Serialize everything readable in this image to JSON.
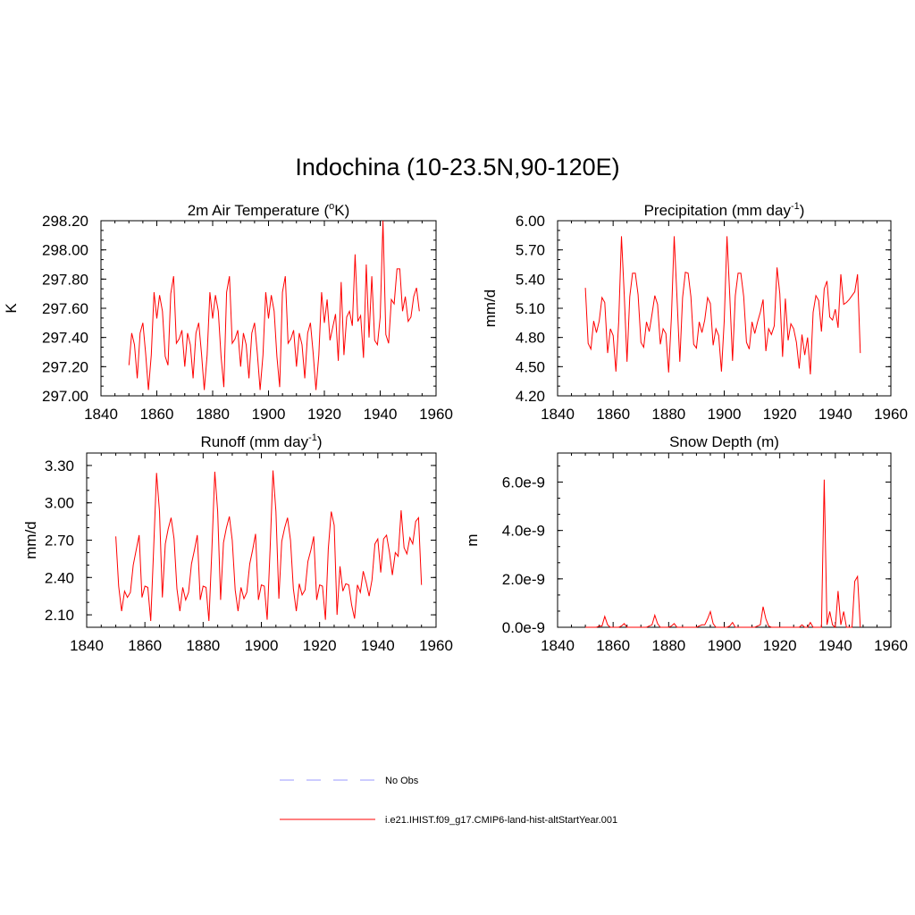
{
  "figure": {
    "title": "Indochina (10-23.5N,90-120E)"
  },
  "legend": [
    {
      "label": "No Obs",
      "color": "#9999ff",
      "dash": "dashed"
    },
    {
      "label": "i.e21.IHIST.f09_g17.CMIP6-land-hist-altStartYear.001",
      "color": "#ff0000",
      "dash": "solid"
    }
  ],
  "chart_data": [
    {
      "type": "line",
      "title_main": "2m Air Temperature (",
      "title_sup": "o",
      "title_end": "K)",
      "ylabel": "K",
      "xlim": [
        1840,
        1960
      ],
      "ylim": [
        297.0,
        298.2
      ],
      "xticks": [
        1840,
        1860,
        1880,
        1900,
        1920,
        1940,
        1960
      ],
      "yticks": [
        "297.00",
        "297.20",
        "297.40",
        "297.60",
        "297.80",
        "298.00",
        "298.20"
      ],
      "x_start": 1850,
      "series": [
        {
          "color": "#ff0000",
          "values": [
            297.21,
            297.43,
            297.35,
            297.12,
            297.43,
            297.5,
            297.29,
            297.04,
            297.28,
            297.71,
            297.53,
            297.69,
            297.58,
            297.27,
            297.21,
            297.7,
            297.82,
            297.36,
            297.39,
            297.45,
            297.2,
            297.43,
            297.35,
            297.12,
            297.43,
            297.5,
            297.29,
            297.04,
            297.28,
            297.71,
            297.53,
            297.69,
            297.58,
            297.27,
            297.06,
            297.71,
            297.82,
            297.36,
            297.39,
            297.45,
            297.2,
            297.43,
            297.35,
            297.12,
            297.43,
            297.5,
            297.29,
            297.04,
            297.28,
            297.71,
            297.53,
            297.69,
            297.58,
            297.27,
            297.06,
            297.71,
            297.82,
            297.36,
            297.39,
            297.45,
            297.2,
            297.43,
            297.35,
            297.12,
            297.43,
            297.5,
            297.29,
            297.04,
            297.28,
            297.71,
            297.5,
            297.66,
            297.38,
            297.47,
            297.56,
            297.24,
            297.78,
            297.28,
            297.54,
            297.58,
            297.48,
            297.97,
            297.51,
            297.55,
            297.26,
            297.9,
            297.4,
            297.82,
            297.38,
            297.35,
            297.54,
            298.2,
            297.42,
            297.36,
            297.66,
            297.63,
            297.87,
            297.87,
            297.58,
            297.68,
            297.51,
            297.54,
            297.68,
            297.74,
            297.58
          ]
        }
      ]
    },
    {
      "type": "line",
      "title_main": "Precipitation (mm day",
      "title_sup": "-1",
      "title_end": ")",
      "ylabel": "mm/d",
      "xlim": [
        1840,
        1960
      ],
      "ylim": [
        4.2,
        6.0
      ],
      "xticks": [
        1840,
        1860,
        1880,
        1900,
        1920,
        1940,
        1960
      ],
      "yticks": [
        "4.20",
        "4.50",
        "4.80",
        "5.10",
        "5.40",
        "5.70",
        "6.00"
      ],
      "x_start": 1850,
      "series": [
        {
          "color": "#ff0000",
          "values": [
            5.31,
            4.74,
            4.68,
            4.97,
            4.85,
            4.97,
            5.21,
            5.16,
            4.64,
            4.89,
            4.82,
            4.45,
            4.96,
            5.84,
            5.24,
            4.55,
            5.22,
            5.46,
            5.46,
            5.24,
            4.75,
            4.7,
            4.96,
            4.86,
            5.04,
            5.23,
            5.14,
            4.73,
            4.89,
            4.84,
            4.44,
            5.01,
            5.84,
            5.2,
            4.55,
            5.21,
            5.47,
            5.46,
            5.22,
            4.73,
            4.69,
            4.96,
            4.85,
            4.98,
            5.21,
            5.15,
            4.72,
            4.89,
            4.82,
            4.45,
            4.97,
            5.84,
            5.23,
            4.56,
            5.23,
            5.46,
            5.46,
            5.22,
            4.75,
            4.68,
            4.96,
            4.84,
            4.96,
            5.06,
            5.19,
            4.66,
            4.89,
            4.83,
            4.92,
            5.52,
            5.25,
            4.6,
            5.2,
            4.77,
            4.94,
            4.89,
            4.75,
            4.48,
            4.83,
            4.62,
            4.8,
            4.42,
            5.06,
            5.23,
            5.18,
            4.86,
            5.3,
            5.38,
            5.01,
            4.98,
            5.09,
            4.9,
            5.45,
            5.14,
            5.16,
            5.19,
            5.23,
            5.27,
            5.45,
            4.64
          ]
        }
      ]
    },
    {
      "type": "line",
      "title_main": "Runoff (mm day",
      "title_sup": "-1",
      "title_end": ")",
      "ylabel": "mm/d",
      "xlim": [
        1840,
        1960
      ],
      "ylim": [
        2.0,
        3.4
      ],
      "xticks": [
        1840,
        1860,
        1880,
        1900,
        1920,
        1940,
        1960
      ],
      "yticks": [
        "2.10",
        "2.40",
        "2.70",
        "3.00",
        "3.30"
      ],
      "x_start": 1850,
      "series": [
        {
          "color": "#ff0000",
          "values": [
            2.73,
            2.33,
            2.13,
            2.29,
            2.24,
            2.28,
            2.5,
            2.62,
            2.74,
            2.24,
            2.33,
            2.32,
            2.05,
            2.62,
            3.24,
            2.93,
            2.24,
            2.67,
            2.79,
            2.88,
            2.71,
            2.31,
            2.13,
            2.32,
            2.22,
            2.28,
            2.51,
            2.62,
            2.74,
            2.22,
            2.33,
            2.32,
            2.05,
            2.62,
            3.25,
            2.93,
            2.22,
            2.68,
            2.8,
            2.89,
            2.7,
            2.3,
            2.13,
            2.32,
            2.23,
            2.28,
            2.51,
            2.62,
            2.75,
            2.22,
            2.34,
            2.33,
            2.06,
            2.63,
            3.26,
            2.93,
            2.23,
            2.69,
            2.8,
            2.88,
            2.7,
            2.31,
            2.13,
            2.35,
            2.26,
            2.3,
            2.53,
            2.62,
            2.73,
            2.22,
            2.34,
            2.33,
            2.06,
            2.63,
            2.93,
            2.82,
            2.1,
            2.49,
            2.29,
            2.35,
            2.34,
            2.18,
            2.07,
            2.34,
            2.28,
            2.45,
            2.36,
            2.25,
            2.38,
            2.67,
            2.71,
            2.44,
            2.71,
            2.74,
            2.6,
            2.42,
            2.6,
            2.57,
            2.94,
            2.64,
            2.59,
            2.72,
            2.67,
            2.85,
            2.88,
            2.34
          ]
        }
      ]
    },
    {
      "type": "line",
      "title_main": "Snow Depth (m)",
      "title_sup": "",
      "title_end": "",
      "ylabel": "m",
      "xlim": [
        1840,
        1960
      ],
      "ylim": [
        0,
        7.2e-09
      ],
      "xticks": [
        1840,
        1860,
        1880,
        1900,
        1920,
        1940,
        1960
      ],
      "yticks_values": [
        0,
        2e-09,
        4e-09,
        6e-09
      ],
      "yticks": [
        "0.0e-9",
        "2.0e-9",
        "4.0e-9",
        "6.0e-9"
      ],
      "x_start": 1850,
      "series": [
        {
          "color": "#ff0000",
          "values": [
            0,
            0,
            0,
            0,
            0,
            5e-11,
            5e-11,
            4.5e-10,
            1e-10,
            0,
            0,
            0,
            0,
            5e-11,
            1.5e-10,
            0,
            0,
            0,
            0,
            0,
            0,
            0,
            0,
            5e-11,
            1e-10,
            5e-10,
            1.5e-10,
            0,
            0,
            0,
            0,
            5e-11,
            1.5e-10,
            0,
            0,
            0,
            0,
            0,
            0,
            0,
            0,
            5e-11,
            1e-10,
            1e-10,
            3.5e-10,
            6.5e-10,
            1.5e-10,
            0,
            0,
            0,
            0,
            0,
            5e-11,
            2e-10,
            0,
            0,
            0,
            0,
            0,
            0,
            0,
            0,
            5e-11,
            1e-10,
            8.5e-10,
            3.5e-10,
            5e-11,
            0,
            0,
            0,
            0,
            0,
            0,
            0,
            0,
            0,
            0,
            0,
            1e-10,
            0,
            0,
            2e-10,
            0,
            0,
            0,
            0,
            6.1e-09,
            1e-10,
            6.5e-10,
            1e-10,
            0,
            1.5e-09,
            1e-10,
            6.5e-10,
            0,
            0,
            0,
            1.9e-09,
            2.1e-09,
            0
          ]
        }
      ]
    }
  ]
}
